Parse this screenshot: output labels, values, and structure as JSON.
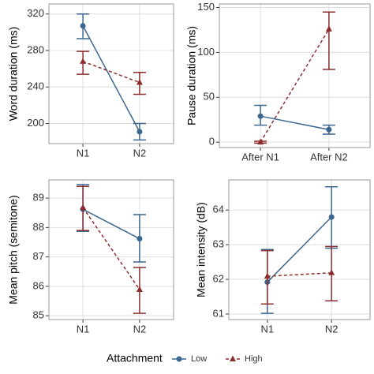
{
  "chart_data": [
    {
      "type": "line",
      "ylabel": "Word duration (ms)",
      "categories": [
        "N1",
        "N2"
      ],
      "ylim": [
        178,
        331
      ],
      "yticks": [
        200,
        240,
        280,
        320
      ],
      "grid": true,
      "series": [
        {
          "name": "Low",
          "color": "#3b6790",
          "linestyle": "solid",
          "marker": "circle",
          "values": [
            307,
            191
          ],
          "lower": [
            293,
            182
          ],
          "upper": [
            320,
            200
          ]
        },
        {
          "name": "High",
          "color": "#8e2d2d",
          "linestyle": "dashed",
          "marker": "triangle",
          "values": [
            268,
            245
          ],
          "lower": [
            254,
            232
          ],
          "upper": [
            279,
            256
          ]
        }
      ]
    },
    {
      "type": "line",
      "ylabel": "Pause duration (ms)",
      "categories": [
        "After N1",
        "After N2"
      ],
      "ylim": [
        -6,
        154
      ],
      "yticks": [
        0,
        50,
        100,
        150
      ],
      "grid": true,
      "series": [
        {
          "name": "Low",
          "color": "#3b6790",
          "linestyle": "solid",
          "marker": "circle",
          "values": [
            29,
            14
          ],
          "lower": [
            19,
            9
          ],
          "upper": [
            41,
            19
          ]
        },
        {
          "name": "High",
          "color": "#8e2d2d",
          "linestyle": "dashed",
          "marker": "triangle",
          "values": [
            0,
            126
          ],
          "lower": [
            -1,
            81
          ],
          "upper": [
            1,
            145
          ]
        }
      ]
    },
    {
      "type": "line",
      "ylabel": "Mean pitch (semitone)",
      "categories": [
        "N1",
        "N2"
      ],
      "ylim": [
        84.87,
        89.62
      ],
      "yticks": [
        85,
        86,
        87,
        88,
        89
      ],
      "grid": true,
      "series": [
        {
          "name": "Low",
          "color": "#3b6790",
          "linestyle": "solid",
          "marker": "circle",
          "values": [
            88.62,
            87.62
          ],
          "lower": [
            87.87,
            86.83
          ],
          "upper": [
            89.46,
            88.44
          ]
        },
        {
          "name": "High",
          "color": "#8e2d2d",
          "linestyle": "dashed",
          "marker": "triangle",
          "values": [
            88.68,
            85.89
          ],
          "lower": [
            87.9,
            85.08
          ],
          "upper": [
            89.4,
            86.64
          ]
        }
      ]
    },
    {
      "type": "line",
      "ylabel": "Mean intensity (dB)",
      "categories": [
        "N1",
        "N2"
      ],
      "ylim": [
        60.84,
        64.87
      ],
      "yticks": [
        61,
        62,
        63,
        64
      ],
      "grid": true,
      "series": [
        {
          "name": "Low",
          "color": "#3b6790",
          "linestyle": "solid",
          "marker": "circle",
          "values": [
            61.92,
            63.8
          ],
          "lower": [
            61.02,
            62.9
          ],
          "upper": [
            62.86,
            64.67
          ]
        },
        {
          "name": "High",
          "color": "#8e2d2d",
          "linestyle": "dashed",
          "marker": "triangle",
          "values": [
            62.09,
            62.19
          ],
          "lower": [
            61.29,
            61.38
          ],
          "upper": [
            62.83,
            62.95
          ]
        }
      ]
    }
  ],
  "legend": {
    "title": "Attachment",
    "position": "bottom"
  }
}
